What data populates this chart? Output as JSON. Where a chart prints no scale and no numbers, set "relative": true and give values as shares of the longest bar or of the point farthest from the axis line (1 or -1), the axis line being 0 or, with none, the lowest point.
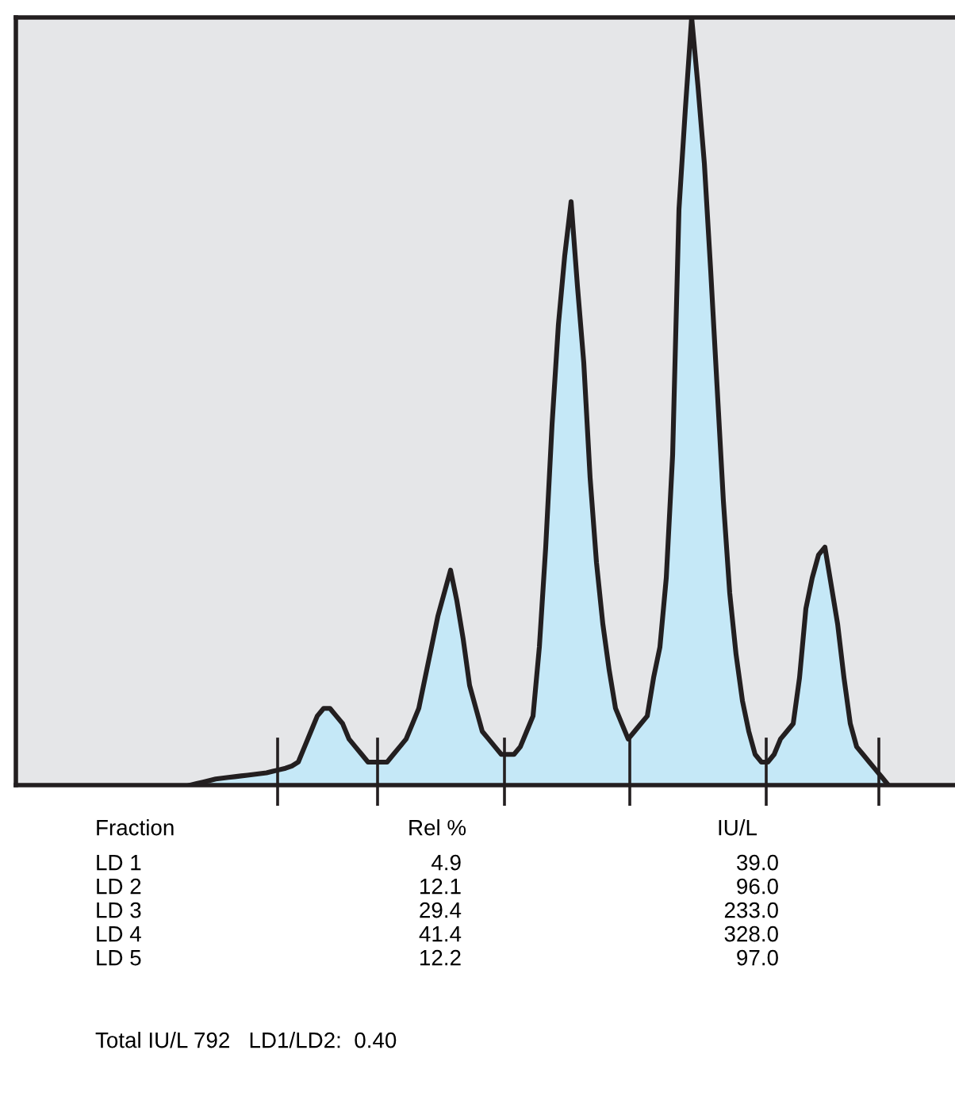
{
  "chart_data": {
    "type": "area",
    "relative": true,
    "categories": [
      null,
      null,
      null,
      null,
      null,
      null,
      null,
      null,
      null,
      null,
      null,
      null,
      null,
      null,
      null,
      null,
      null,
      null,
      null,
      null,
      null,
      null,
      null,
      null,
      null,
      null,
      null,
      null,
      null,
      null,
      null,
      null,
      null,
      null,
      null,
      null,
      null,
      null,
      null,
      null,
      null,
      null,
      null,
      null,
      null,
      null,
      null,
      null,
      null,
      null,
      null,
      null,
      null,
      null,
      null,
      null,
      null,
      null,
      null,
      null,
      null,
      null,
      null,
      null,
      null,
      null,
      null,
      null,
      null,
      null,
      null,
      null,
      null,
      null,
      null,
      null,
      null,
      null,
      null,
      null,
      null,
      null,
      null,
      null,
      null,
      null,
      null,
      null,
      null,
      null,
      null,
      null,
      null,
      null,
      null,
      null,
      null,
      null,
      null,
      null,
      null,
      null,
      null,
      null,
      null,
      null,
      null,
      null,
      null,
      null,
      null
    ],
    "series": [
      {
        "color": "#c5e8f7",
        "values": [
          0.0,
          0.002,
          0.004,
          0.006,
          0.008,
          0.009,
          0.01,
          0.011,
          0.012,
          0.013,
          0.014,
          0.015,
          0.016,
          0.018,
          0.02,
          0.022,
          0.025,
          0.03,
          0.05,
          0.07,
          0.09,
          0.1,
          0.1,
          0.09,
          0.08,
          0.06,
          0.05,
          0.04,
          0.03,
          0.03,
          0.03,
          0.03,
          0.04,
          0.05,
          0.06,
          0.08,
          0.1,
          0.14,
          0.18,
          0.22,
          0.25,
          0.28,
          0.24,
          0.19,
          0.13,
          0.1,
          0.07,
          0.06,
          0.05,
          0.04,
          0.04,
          0.04,
          0.05,
          0.07,
          0.09,
          0.18,
          0.31,
          0.47,
          0.6,
          0.69,
          0.76,
          0.65,
          0.55,
          0.4,
          0.29,
          0.21,
          0.15,
          0.1,
          0.08,
          0.06,
          0.07,
          0.08,
          0.09,
          0.14,
          0.18,
          0.27,
          0.43,
          0.75,
          0.88,
          1.0,
          0.91,
          0.81,
          0.67,
          0.52,
          0.37,
          0.25,
          0.17,
          0.11,
          0.07,
          0.04,
          0.03,
          0.03,
          0.04,
          0.06,
          0.07,
          0.08,
          0.14,
          0.23,
          0.27,
          0.3,
          0.31,
          0.26,
          0.21,
          0.14,
          0.08,
          0.05,
          0.04,
          0.03,
          0.02,
          0.01,
          0.0
        ]
      }
    ],
    "annotations": [
      "Fraction",
      "Rel %",
      "IU/L",
      "LD 1",
      "4.9",
      "39.0",
      "LD 2",
      "12.1",
      "96.0",
      "LD 3",
      "29.4",
      "233.0",
      "LD 4",
      "41.4",
      "328.0",
      "LD 5",
      "12.2",
      "97.0",
      "Total IU/L 792   LD1/LD2:  0.40"
    ]
  }
}
